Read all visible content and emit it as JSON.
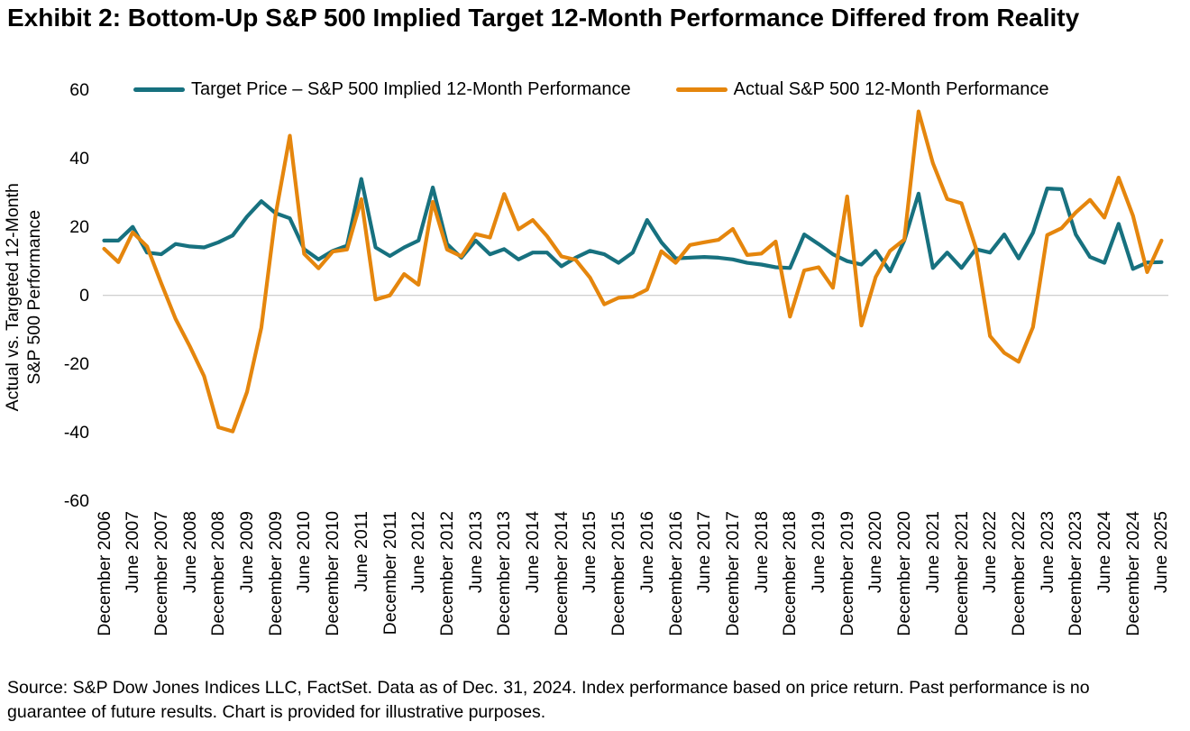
{
  "title": "Exhibit 2: Bottom-Up S&P 500 Implied Target 12-Month Performance Differed from Reality",
  "source_note": "Source: S&P Dow Jones Indices LLC, FactSet. Data as of Dec. 31, 2024. Index performance based on price return. Past performance is no guarantee of future results. Chart is provided for illustrative purposes.",
  "colors": {
    "target_series": "#17717F",
    "actual_series": "#E5860D",
    "zero_gridline": "#C8C8C8",
    "text": "#000000",
    "background": "#FFFFFF"
  },
  "chart_data": {
    "type": "line",
    "title": "",
    "xlabel": "",
    "ylabel_line1": "Actual vs. Targeted 12-Month",
    "ylabel_line2": "S&P 500 Performance",
    "ylim": [
      -60,
      60
    ],
    "yticks": [
      60,
      40,
      20,
      0,
      -20,
      -40,
      -60
    ],
    "grid": "zero-line-only",
    "legend_position": "top",
    "x_frequency": "quarterly",
    "x_start": "December 2006",
    "x_end": "June 2025",
    "x_tick_labels": [
      "December 2006",
      "June 2007",
      "December 2007",
      "June 2008",
      "December 2008",
      "June 2009",
      "December 2009",
      "June 2010",
      "December 2010",
      "June 2011",
      "December 2011",
      "June 2012",
      "December 2012",
      "June 2013",
      "December 2013",
      "June 2014",
      "December 2014",
      "June 2015",
      "December 2015",
      "June 2016",
      "December 2016",
      "June 2017",
      "December 2017",
      "June 2018",
      "December 2018",
      "June 2019",
      "December 2019",
      "June 2020",
      "December 2020",
      "June 2021",
      "December 2021",
      "June 2022",
      "December 2022",
      "June 2023",
      "December 2023",
      "June 2024",
      "December 2024",
      "June 2025"
    ],
    "x_ticks_every_n_points": 2,
    "series": [
      {
        "name": "Target Price – S&P 500 Implied 12-Month Performance",
        "color": "#17717F",
        "values": [
          16,
          16,
          20,
          12.5,
          12,
          15,
          14.3,
          14,
          15.5,
          17.5,
          23,
          27.5,
          24,
          22.5,
          13.5,
          10.5,
          13,
          14.5,
          34,
          14,
          11.5,
          14,
          16,
          31.5,
          15,
          11,
          16,
          12,
          13.5,
          10.5,
          12.5,
          12.5,
          8.5,
          11,
          13,
          12,
          9.5,
          12.5,
          22,
          15.5,
          10.8,
          11,
          11.2,
          11,
          10.5,
          9.5,
          9,
          8.2,
          8,
          17.8,
          15,
          12,
          10,
          9,
          13,
          7,
          16,
          29.7,
          8,
          12.5,
          8,
          13.5,
          12.5,
          17.8,
          10.8,
          18.3,
          31.2,
          31,
          17.8,
          11.2,
          9.5,
          20.9,
          7.7,
          9.6,
          9.7
        ]
      },
      {
        "name": "Actual S&P 500 12-Month Performance",
        "color": "#E5860D",
        "values": [
          13.6,
          9.7,
          18.4,
          14.3,
          3.5,
          -6.9,
          -14.9,
          -23.6,
          -38.5,
          -39.7,
          -28.2,
          -9.4,
          23.5,
          46.6,
          12.1,
          7.9,
          12.8,
          13.4,
          28.1,
          -1.2,
          0,
          6.2,
          3.1,
          27.3,
          13.4,
          11.4,
          17.9,
          16.9,
          29.6,
          19.3,
          22,
          17.3,
          11.4,
          10.4,
          5.2,
          -2.6,
          -0.7,
          -0.4,
          1.7,
          12.9,
          9.5,
          14.7,
          15.5,
          16.2,
          19.4,
          11.8,
          12.2,
          15.7,
          -6.2,
          7.3,
          8.2,
          2.2,
          28.9,
          -8.8,
          5.4,
          13,
          16.3,
          53.7,
          38.6,
          28.1,
          26.9,
          14,
          -11.9,
          -16.8,
          -19.4,
          -9.3,
          17.6,
          19.6,
          24.2,
          27.9,
          22.7,
          34.4,
          23.3,
          6.8,
          16
        ]
      }
    ]
  }
}
